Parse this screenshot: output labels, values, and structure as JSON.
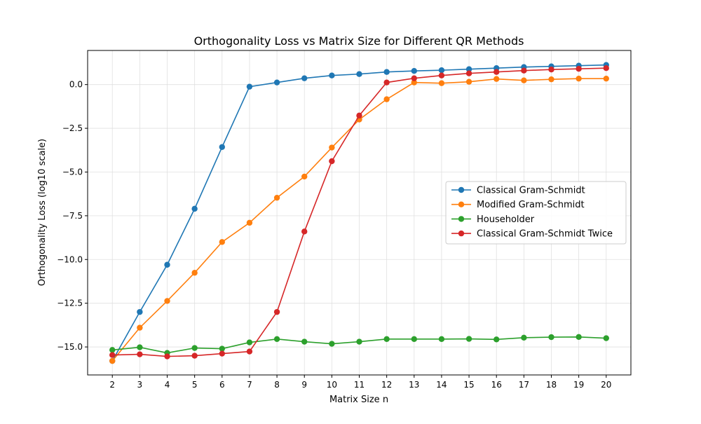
{
  "chart_data": {
    "type": "line",
    "title": "Orthogonality Loss vs Matrix Size for Different QR Methods",
    "xlabel": "Matrix Size n",
    "ylabel": "Orthogonality Loss (log10 scale)",
    "x": [
      2,
      3,
      4,
      5,
      6,
      7,
      8,
      9,
      10,
      11,
      12,
      13,
      14,
      15,
      16,
      17,
      18,
      19,
      20
    ],
    "xlim": [
      1.1,
      20.9
    ],
    "ylim": [
      -16.6,
      1.95
    ],
    "yticks": [
      0.0,
      -2.5,
      -5.0,
      -7.5,
      -10.0,
      -12.5,
      -15.0
    ],
    "ytick_labels": [
      "0.0",
      "−2.5",
      "−5.0",
      "−7.5",
      "−10.0",
      "−12.5",
      "−15.0"
    ],
    "grid": true,
    "legend_position": "center-right",
    "series": [
      {
        "name": "Classical Gram-Schmidt",
        "color": "#1f77b4",
        "values": [
          -15.8,
          -13.0,
          -10.3,
          -7.1,
          -3.57,
          -0.12,
          0.12,
          0.36,
          0.52,
          0.6,
          0.72,
          0.78,
          0.82,
          0.88,
          0.94,
          1.0,
          1.04,
          1.08,
          1.12
        ]
      },
      {
        "name": "Modified Gram-Schmidt",
        "color": "#ff7f0e",
        "values": [
          -15.8,
          -13.9,
          -12.37,
          -10.76,
          -9.0,
          -7.9,
          -6.47,
          -5.26,
          -3.6,
          -2.0,
          -0.84,
          0.12,
          0.08,
          0.16,
          0.32,
          0.24,
          0.3,
          0.34,
          0.34
        ]
      },
      {
        "name": "Householder",
        "color": "#2ca02c",
        "values": [
          -15.17,
          -15.02,
          -15.34,
          -15.06,
          -15.1,
          -14.74,
          -14.55,
          -14.7,
          -14.82,
          -14.7,
          -14.55,
          -14.55,
          -14.55,
          -14.54,
          -14.57,
          -14.47,
          -14.44,
          -14.43,
          -14.5
        ]
      },
      {
        "name": "Classical Gram-Schmidt Twice",
        "color": "#d62728",
        "values": [
          -15.46,
          -15.42,
          -15.54,
          -15.5,
          -15.38,
          -15.26,
          -13.0,
          -8.4,
          -4.38,
          -1.77,
          0.12,
          0.36,
          0.52,
          0.64,
          0.72,
          0.8,
          0.86,
          0.9,
          0.94
        ]
      }
    ]
  }
}
